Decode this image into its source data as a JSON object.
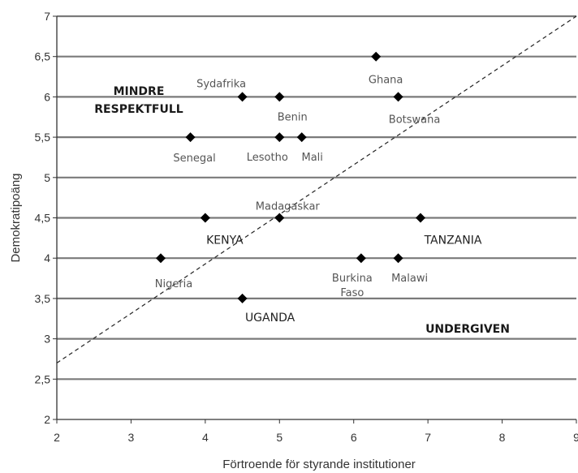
{
  "chart_data": {
    "type": "scatter",
    "title": "",
    "xlabel": "Förtroende för styrande institutioner",
    "ylabel": "Demokratipoäng",
    "xlim": [
      2,
      9
    ],
    "ylim": [
      2,
      7
    ],
    "x_ticks": [
      "2",
      "3",
      "4",
      "5",
      "6",
      "7",
      "8",
      "9"
    ],
    "y_ticks": [
      "2",
      "2,5",
      "3",
      "3,5",
      "4",
      "4,5",
      "5",
      "5,5",
      "6",
      "6,5",
      "7"
    ],
    "horizontal_grid": true,
    "reference_line": {
      "style": "dashed",
      "from": [
        2,
        2.7
      ],
      "to": [
        9,
        7
      ]
    },
    "points": [
      {
        "label": "Sydafrika",
        "x": 4.5,
        "y": 6.0,
        "caps": false
      },
      {
        "label": "Benin",
        "x": 5.0,
        "y": 6.0,
        "caps": false
      },
      {
        "label": "Ghana",
        "x": 6.3,
        "y": 6.5,
        "caps": false
      },
      {
        "label": "Botswana",
        "x": 6.6,
        "y": 6.0,
        "caps": false
      },
      {
        "label": "Senegal",
        "x": 3.8,
        "y": 5.5,
        "caps": false
      },
      {
        "label": "Lesotho",
        "x": 5.0,
        "y": 5.5,
        "caps": false
      },
      {
        "label": "Mali",
        "x": 5.3,
        "y": 5.5,
        "caps": false
      },
      {
        "label": "KENYA",
        "x": 4.0,
        "y": 4.5,
        "caps": true
      },
      {
        "label": "Madagaskar",
        "x": 5.0,
        "y": 4.5,
        "caps": false
      },
      {
        "label": "TANZANIA",
        "x": 6.9,
        "y": 4.5,
        "caps": true
      },
      {
        "label": "Nigeria",
        "x": 3.4,
        "y": 4.0,
        "caps": false
      },
      {
        "label": "Burkina Faso",
        "x": 6.1,
        "y": 4.0,
        "caps": false
      },
      {
        "label": "Malawi",
        "x": 6.6,
        "y": 4.0,
        "caps": false
      },
      {
        "label": "UGANDA",
        "x": 4.5,
        "y": 3.5,
        "caps": true
      }
    ],
    "regions": [
      {
        "lines": [
          "MINDRE",
          "RESPEKTFULL"
        ]
      },
      {
        "lines": [
          "UNDERGIVEN"
        ]
      }
    ]
  }
}
